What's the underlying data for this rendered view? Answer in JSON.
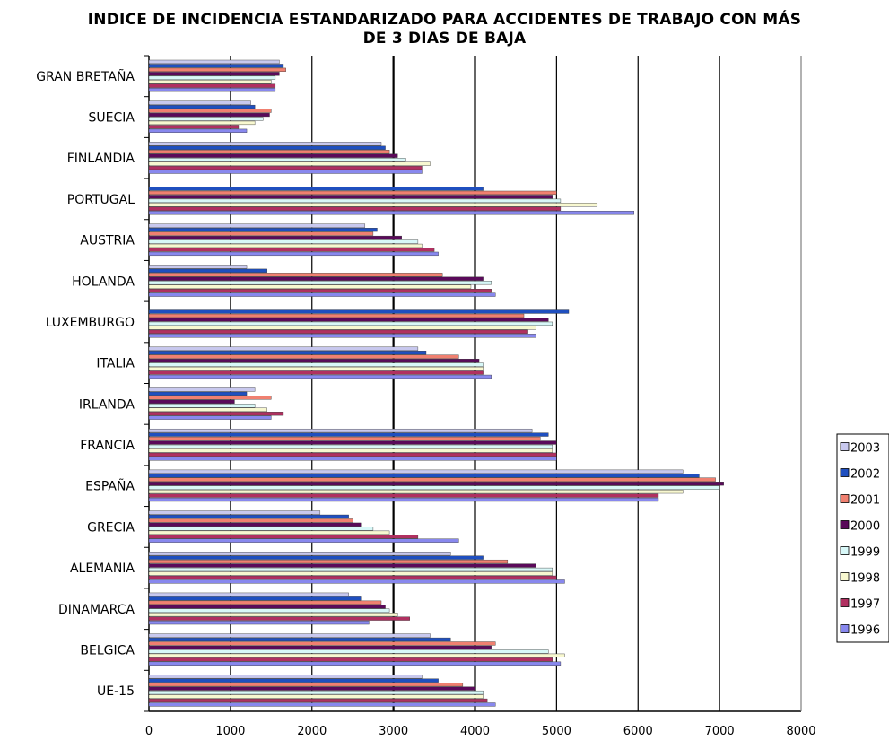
{
  "chart_data": {
    "type": "bar",
    "orientation": "horizontal",
    "title_line1": "INDICE DE INCIDENCIA ESTANDARIZADO PARA ACCIDENTES DE TRABAJO CON MÁS",
    "title_line2": "DE 3 DIAS DE BAJA",
    "categories": [
      "GRAN BRETAÑA",
      "SUECIA",
      "FINLANDIA",
      "PORTUGAL",
      "AUSTRIA",
      "HOLANDA",
      "LUXEMBURGO",
      "ITALIA",
      "IRLANDA",
      "FRANCIA",
      "ESPAÑA",
      "GRECIA",
      "ALEMANIA",
      "DINAMARCA",
      "BELGICA",
      "UE-15"
    ],
    "xlim": [
      0,
      8000
    ],
    "x_ticks": [
      "0",
      "1000",
      "2000",
      "3000",
      "4000",
      "5000",
      "6000",
      "7000",
      "8000"
    ],
    "grid": "vertical",
    "legend_position": "right",
    "series": [
      {
        "name": "2003",
        "color": "#c8c8ee",
        "values": [
          1600,
          1250,
          2850,
          null,
          2650,
          1200,
          null,
          3300,
          1300,
          4700,
          6550,
          2100,
          3700,
          2450,
          3450,
          3350
        ]
      },
      {
        "name": "2002",
        "color": "#1f4fbf",
        "values": [
          1650,
          1300,
          2900,
          4100,
          2800,
          1450,
          5150,
          3400,
          1200,
          4900,
          6750,
          2450,
          4100,
          2600,
          3700,
          3550
        ]
      },
      {
        "name": "2001",
        "color": "#f08070",
        "values": [
          1680,
          1500,
          2950,
          5000,
          2750,
          3600,
          4600,
          3800,
          1500,
          4800,
          6950,
          2500,
          4400,
          2850,
          4250,
          3850
        ]
      },
      {
        "name": "2000",
        "color": "#5a0a5a",
        "values": [
          1600,
          1480,
          3050,
          4950,
          3100,
          4100,
          4900,
          4050,
          1050,
          5000,
          7050,
          2600,
          4750,
          2900,
          4200,
          4000
        ]
      },
      {
        "name": "1999",
        "color": "#d8f8f8",
        "values": [
          1550,
          1400,
          3150,
          5050,
          3300,
          4200,
          4950,
          4100,
          1300,
          4950,
          7000,
          2750,
          4950,
          2950,
          4900,
          4100
        ]
      },
      {
        "name": "1998",
        "color": "#f8f8d0",
        "values": [
          1500,
          1300,
          3450,
          5500,
          3350,
          3950,
          4750,
          4100,
          1450,
          4950,
          6550,
          2950,
          4950,
          3050,
          5100,
          4100
        ]
      },
      {
        "name": "1997",
        "color": "#b03060",
        "values": [
          1550,
          1100,
          3350,
          5050,
          3500,
          4200,
          4650,
          4100,
          1650,
          5000,
          6250,
          3300,
          5000,
          3200,
          4950,
          4150
        ]
      },
      {
        "name": "1996",
        "color": "#8888ee",
        "values": [
          1550,
          1200,
          3350,
          5950,
          3550,
          4250,
          4750,
          4200,
          1500,
          5000,
          6250,
          3800,
          5100,
          2700,
          5050,
          4250
        ]
      }
    ]
  }
}
